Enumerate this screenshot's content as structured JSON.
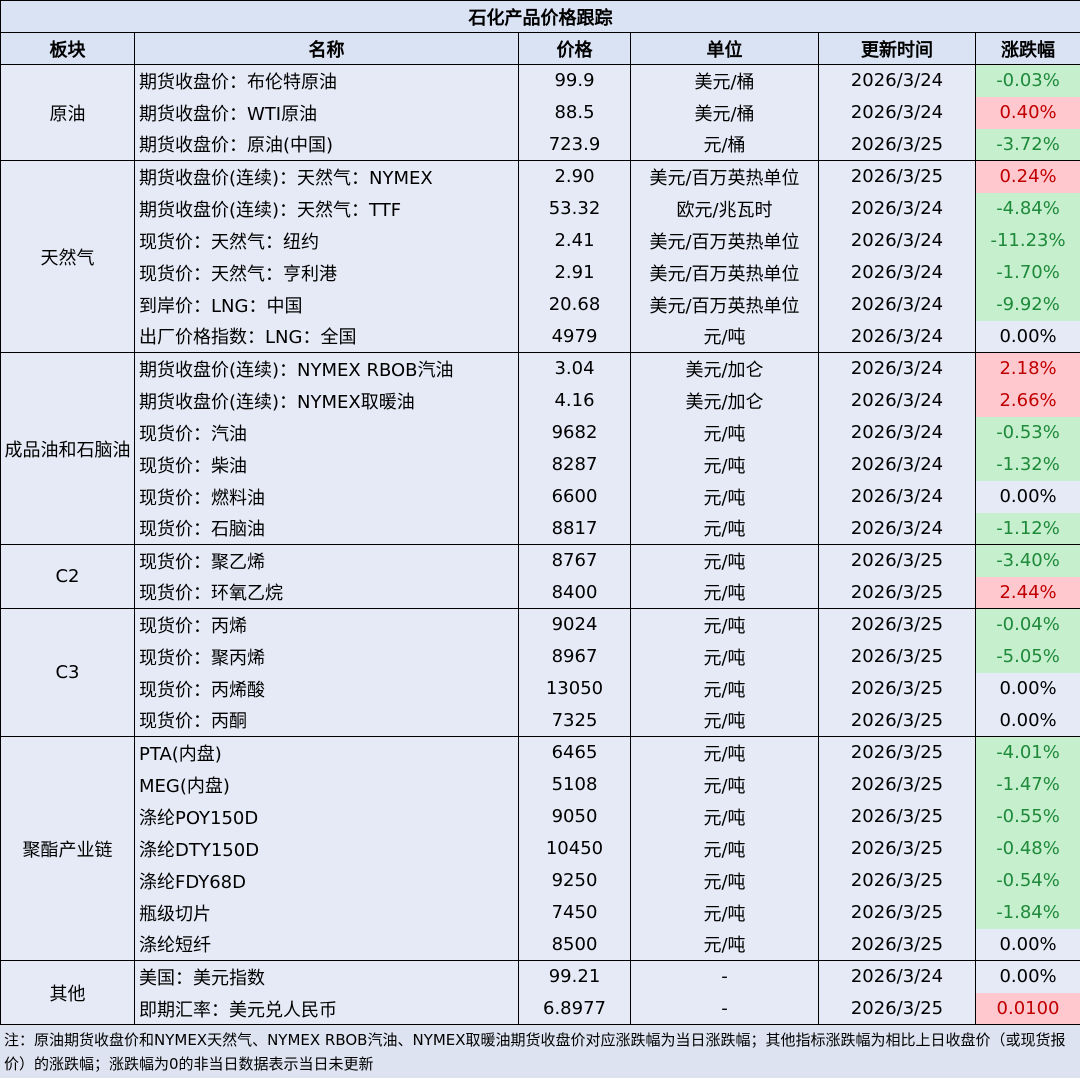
{
  "title": "石化产品价格跟踪",
  "header": [
    "板块",
    "名称",
    "价格",
    "单位",
    "更新时间",
    "涨跌幅"
  ],
  "groups": [
    {
      "name": "原油",
      "rows": [
        [
          "期货收盘价：布伦特原油",
          "99.9",
          "美元/桶",
          "2026/3/24",
          "-0.03%"
        ],
        [
          "期货收盘价：WTI原油",
          "88.5",
          "美元/桶",
          "2026/3/24",
          "0.40%"
        ],
        [
          "期货收盘价：原油(中国)",
          "723.9",
          "元/桶",
          "2026/3/25",
          "-3.72%"
        ]
      ]
    },
    {
      "name": "天然气",
      "rows": [
        [
          "期货收盘价(连续)：天然气：NYMEX",
          "2.90",
          "美元/百万英热单位",
          "2026/3/25",
          "0.24%"
        ],
        [
          "期货收盘价(连续)：天然气：TTF",
          "53.32",
          "欧元/兆瓦时",
          "2026/3/24",
          "-4.84%"
        ],
        [
          "现货价：天然气：纽约",
          "2.41",
          "美元/百万英热单位",
          "2026/3/24",
          "-11.23%"
        ],
        [
          "现货价：天然气：亨利港",
          "2.91",
          "美元/百万英热单位",
          "2026/3/24",
          "-1.70%"
        ],
        [
          "到岸价：LNG：中国",
          "20.68",
          "美元/百万英热单位",
          "2026/3/24",
          "-9.92%"
        ],
        [
          "出厂价格指数：LNG：全国",
          "4979",
          "元/吨",
          "2026/3/24",
          "0.00%"
        ]
      ]
    },
    {
      "name": "成品油和石脑油",
      "rows": [
        [
          "期货收盘价(连续)：NYMEX RBOB汽油",
          "3.04",
          "美元/加仑",
          "2026/3/24",
          "2.18%"
        ],
        [
          "期货收盘价(连续)：NYMEX取暖油",
          "4.16",
          "美元/加仑",
          "2026/3/24",
          "2.66%"
        ],
        [
          "现货价：汽油",
          "9682",
          "元/吨",
          "2026/3/24",
          "-0.53%"
        ],
        [
          "现货价：柴油",
          "8287",
          "元/吨",
          "2026/3/24",
          "-1.32%"
        ],
        [
          "现货价：燃料油",
          "6600",
          "元/吨",
          "2026/3/24",
          "0.00%"
        ],
        [
          "现货价：石脑油",
          "8817",
          "元/吨",
          "2026/3/24",
          "-1.12%"
        ]
      ]
    },
    {
      "name": "C2",
      "rows": [
        [
          "现货价：聚乙烯",
          "8767",
          "元/吨",
          "2026/3/25",
          "-3.40%"
        ],
        [
          "现货价：环氧乙烷",
          "8400",
          "元/吨",
          "2026/3/25",
          "2.44%"
        ]
      ]
    },
    {
      "name": "C3",
      "rows": [
        [
          "现货价：丙烯",
          "9024",
          "元/吨",
          "2026/3/25",
          "-0.04%"
        ],
        [
          "现货价：聚丙烯",
          "8967",
          "元/吨",
          "2026/3/25",
          "-5.05%"
        ],
        [
          "现货价：丙烯酸",
          "13050",
          "元/吨",
          "2026/3/25",
          "0.00%"
        ],
        [
          "现货价：丙酮",
          "7325",
          "元/吨",
          "2026/3/25",
          "0.00%"
        ]
      ]
    },
    {
      "name": "聚酯产业链",
      "rows": [
        [
          "PTA(内盘)",
          "6465",
          "元/吨",
          "2026/3/25",
          "-4.01%"
        ],
        [
          "MEG(内盘)",
          "5108",
          "元/吨",
          "2026/3/25",
          "-1.47%"
        ],
        [
          "涤纶POY150D",
          "9050",
          "元/吨",
          "2026/3/25",
          "-0.55%"
        ],
        [
          "涤纶DTY150D",
          "10450",
          "元/吨",
          "2026/3/25",
          "-0.48%"
        ],
        [
          "涤纶FDY68D",
          "9250",
          "元/吨",
          "2026/3/25",
          "-0.54%"
        ],
        [
          "瓶级切片",
          "7450",
          "元/吨",
          "2026/3/25",
          "-1.84%"
        ],
        [
          "涤纶短纤",
          "8500",
          "元/吨",
          "2026/3/25",
          "0.00%"
        ]
      ]
    },
    {
      "name": "其他",
      "rows": [
        [
          "美国：美元指数",
          "99.21",
          "-",
          "2026/3/24",
          "0.00%"
        ],
        [
          "即期汇率：美元兑人民币",
          "6.8977",
          "-",
          "2026/3/25",
          "0.0100"
        ]
      ]
    }
  ],
  "note": "注：原油期货收盘价和NYMEX天然气、NYMEX RBOB汽油、NYMEX取暖油期货收盘价对应涨跌幅为当日涨跌幅；其他指标涨跌幅为相比上日收盘价（或现货报价）的涨跌幅；涨跌幅为0的非当日数据表示当日未更新"
}
